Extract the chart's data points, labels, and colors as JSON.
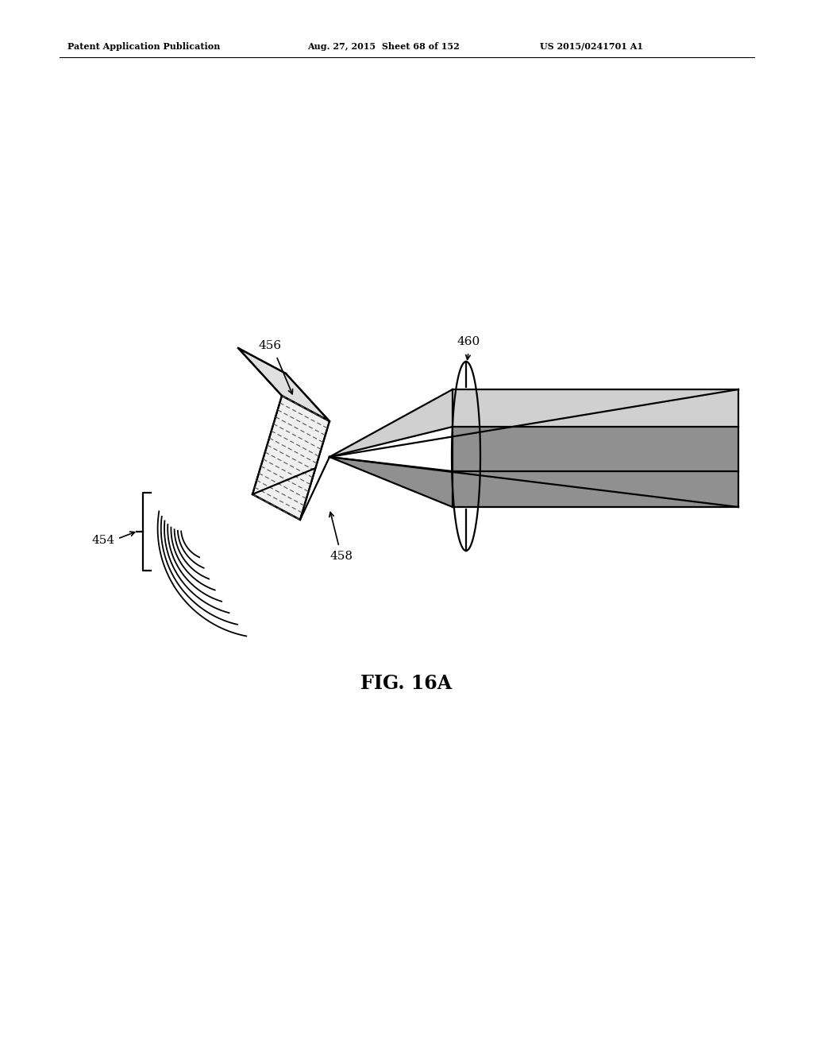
{
  "header_left": "Patent Application Publication",
  "header_mid": "Aug. 27, 2015  Sheet 68 of 152",
  "header_right": "US 2015/0241701 A1",
  "caption": "FIG. 16A",
  "label_454": "454",
  "label_456": "456",
  "label_458": "458",
  "label_460": "460",
  "bg_color": "#ffffff",
  "line_color": "#000000",
  "fill_light": "#d0d0d0",
  "fill_dark": "#909090",
  "fill_mid": "#b0b0b0"
}
